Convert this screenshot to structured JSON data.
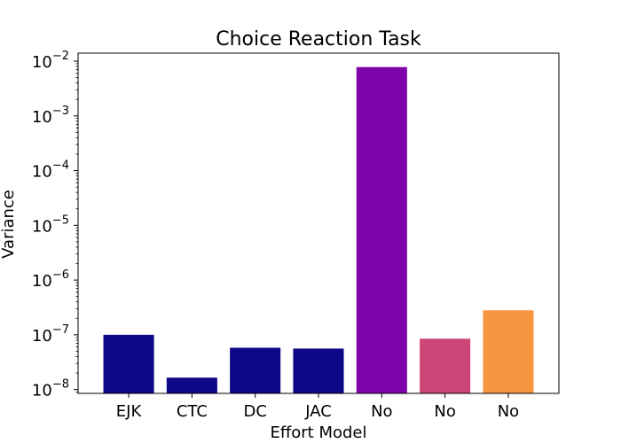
{
  "chart_data": {
    "type": "bar",
    "title": "Choice Reaction Task",
    "xlabel": "Effort Model",
    "ylabel": "Variance",
    "yscale": "log",
    "ylim": [
      8.5e-09,
      0.014
    ],
    "yticks": [
      {
        "base": "10",
        "exp": "−8",
        "value": 1e-08
      },
      {
        "base": "10",
        "exp": "−7",
        "value": 1e-07
      },
      {
        "base": "10",
        "exp": "−6",
        "value": 1e-06
      },
      {
        "base": "10",
        "exp": "−5",
        "value": 1e-05
      },
      {
        "base": "10",
        "exp": "−4",
        "value": 0.0001
      },
      {
        "base": "10",
        "exp": "−3",
        "value": 0.001
      },
      {
        "base": "10",
        "exp": "−2",
        "value": 0.01
      }
    ],
    "categories": [
      "EJK",
      "CTC",
      "DC",
      "JAC",
      "No",
      "No",
      "No"
    ],
    "values": [
      1e-07,
      1.65e-08,
      5.8e-08,
      5.6e-08,
      0.0078,
      8.5e-08,
      2.8e-07
    ],
    "colors": [
      "#0d0887",
      "#0d0887",
      "#0d0887",
      "#0d0887",
      "#7e03a8",
      "#cc4778",
      "#f89540"
    ],
    "grid": false
  }
}
